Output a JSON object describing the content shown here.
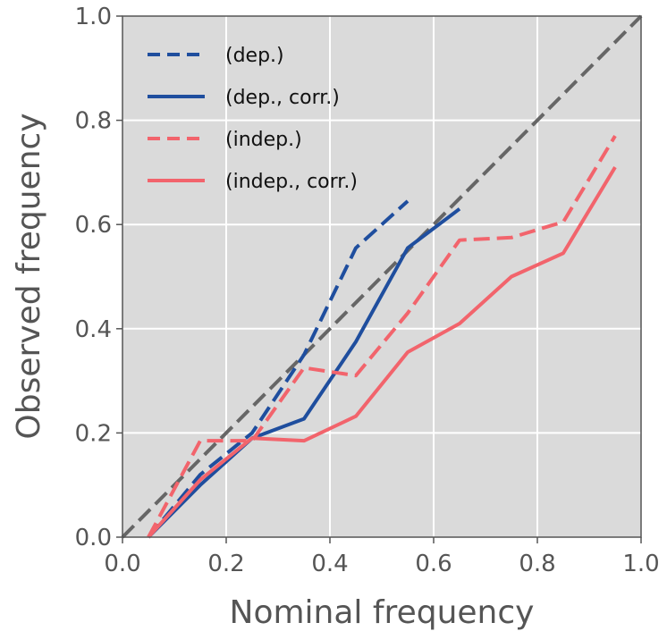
{
  "chart_data": {
    "type": "line",
    "title": "",
    "xlabel": "Nominal frequency",
    "ylabel": "Observed frequency",
    "xlim": [
      0.0,
      1.0
    ],
    "ylim": [
      0.0,
      1.0
    ],
    "xticks": [
      "0.0",
      "0.2",
      "0.4",
      "0.6",
      "0.8",
      "1.0"
    ],
    "yticks": [
      "0.0",
      "0.2",
      "0.4",
      "0.6",
      "0.8",
      "1.0"
    ],
    "grid": true,
    "legend": "top-left",
    "background": "#dadada",
    "reference_line": {
      "color": "#666666",
      "style": "dashed",
      "x": [
        0.0,
        1.0
      ],
      "y": [
        0.0,
        1.0
      ]
    },
    "series": [
      {
        "name": "(dep.)",
        "color": "#1f4e9e",
        "style": "dashed",
        "x": [
          0.05,
          0.15,
          0.25,
          0.35,
          0.45,
          0.55
        ],
        "y": [
          0.0,
          0.12,
          0.2,
          0.35,
          0.555,
          0.645
        ]
      },
      {
        "name": "(dep., corr.)",
        "color": "#1f4e9e",
        "style": "solid",
        "x": [
          0.05,
          0.15,
          0.25,
          0.35,
          0.45,
          0.55,
          0.65
        ],
        "y": [
          0.0,
          0.1,
          0.19,
          0.227,
          0.375,
          0.555,
          0.63
        ]
      },
      {
        "name": "(indep.)",
        "color": "#f2646c",
        "style": "dashed",
        "x": [
          0.05,
          0.15,
          0.25,
          0.35,
          0.45,
          0.55,
          0.65,
          0.75,
          0.85,
          0.95
        ],
        "y": [
          0.0,
          0.185,
          0.185,
          0.325,
          0.31,
          0.43,
          0.57,
          0.575,
          0.605,
          0.77
        ]
      },
      {
        "name": "(indep., corr.)",
        "color": "#f2646c",
        "style": "solid",
        "x": [
          0.05,
          0.15,
          0.25,
          0.35,
          0.45,
          0.55,
          0.65,
          0.75,
          0.85,
          0.95
        ],
        "y": [
          0.0,
          0.11,
          0.19,
          0.185,
          0.232,
          0.355,
          0.41,
          0.5,
          0.545,
          0.71
        ]
      }
    ]
  }
}
